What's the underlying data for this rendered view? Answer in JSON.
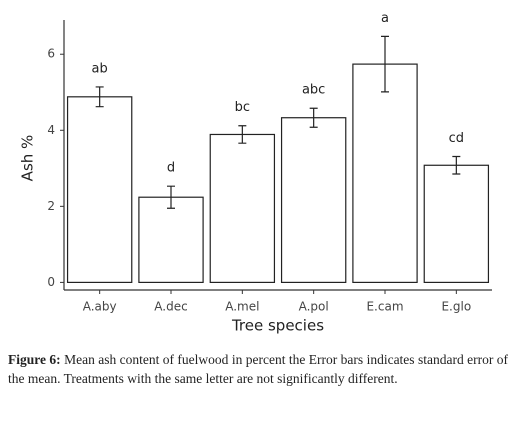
{
  "chart_data": {
    "type": "bar",
    "categories": [
      "A.aby",
      "A.dec",
      "A.mel",
      "A.pol",
      "E.cam",
      "E.glo"
    ],
    "values": [
      4.88,
      2.24,
      3.89,
      4.33,
      5.74,
      3.08
    ],
    "errors": [
      0.26,
      0.29,
      0.23,
      0.25,
      0.73,
      0.23
    ],
    "letters": [
      "ab",
      "d",
      "bc",
      "abc",
      "a",
      "cd"
    ],
    "x_label": "Tree species",
    "y_label": "Ash %",
    "ylim": [
      -0.2,
      6.9
    ],
    "yticks": [
      0,
      2,
      4,
      6
    ],
    "color": "#ffffff",
    "grid": false
  },
  "caption": {
    "label": "Figure 6:",
    "text": "Mean ash content of fuelwood in percent the Error bars indicates standard error of the mean. Treatments with the same letter are not significantly different."
  }
}
